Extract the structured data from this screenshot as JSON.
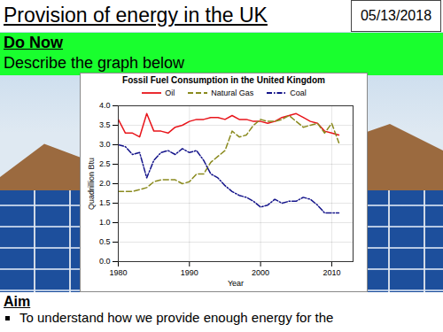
{
  "slide": {
    "title": "Provision of energy in the UK",
    "date": "05/13/2018",
    "heading": "Do Now",
    "prompt": "Describe the graph below",
    "aim_heading": "Aim",
    "aim_items": [
      "To understand how we provide enough energy for the"
    ]
  },
  "chart_data": {
    "type": "line",
    "title": "Fossil Fuel Consumption in the United Kingdom",
    "x_label": "Year",
    "y_label": "Quadrillion Btu",
    "x": [
      1980,
      1981,
      1982,
      1983,
      1984,
      1985,
      1986,
      1987,
      1988,
      1989,
      1990,
      1991,
      1992,
      1993,
      1994,
      1995,
      1996,
      1997,
      1998,
      1999,
      2000,
      2001,
      2002,
      2003,
      2004,
      2005,
      2006,
      2007,
      2008,
      2009,
      2010,
      2011
    ],
    "series": [
      {
        "name": "Oil",
        "color": "#e8151b",
        "line_style": "solid",
        "values": [
          3.65,
          3.3,
          3.3,
          3.2,
          3.8,
          3.35,
          3.35,
          3.3,
          3.45,
          3.5,
          3.6,
          3.65,
          3.65,
          3.7,
          3.7,
          3.65,
          3.75,
          3.65,
          3.65,
          3.6,
          3.6,
          3.55,
          3.6,
          3.7,
          3.75,
          3.8,
          3.7,
          3.6,
          3.55,
          3.35,
          3.3,
          3.25
        ]
      },
      {
        "name": "Natural Gas",
        "color": "#8a8a1e",
        "line_style": "dashed",
        "values": [
          1.8,
          1.8,
          1.8,
          1.85,
          1.9,
          2.05,
          2.1,
          2.1,
          2.1,
          2.0,
          2.05,
          2.25,
          2.25,
          2.55,
          2.7,
          2.85,
          3.35,
          3.2,
          3.25,
          3.5,
          3.65,
          3.6,
          3.6,
          3.65,
          3.75,
          3.6,
          3.45,
          3.5,
          3.55,
          3.3,
          3.55,
          3.05
        ]
      },
      {
        "name": "Coal",
        "color": "#14148a",
        "line_style": "dashdot",
        "values": [
          3.0,
          2.95,
          2.75,
          2.8,
          2.15,
          2.6,
          2.8,
          2.85,
          2.75,
          2.9,
          2.8,
          2.85,
          2.6,
          2.25,
          2.15,
          1.95,
          1.8,
          1.7,
          1.65,
          1.55,
          1.4,
          1.45,
          1.6,
          1.5,
          1.55,
          1.55,
          1.65,
          1.6,
          1.45,
          1.25,
          1.25,
          1.25
        ]
      }
    ],
    "xlim": [
      1980,
      2013
    ],
    "xticks": [
      1980,
      1990,
      2000,
      2010
    ],
    "ylim": [
      0,
      4
    ],
    "yticks": [
      {
        "value": 0,
        "label": "0.0"
      },
      {
        "value": 0.5,
        "label": "0.5"
      },
      {
        "value": 1,
        "label": "1.0"
      },
      {
        "value": 1.5,
        "label": "1.5"
      },
      {
        "value": 2,
        "label": "2.0"
      },
      {
        "value": 2.5,
        "label": "2.5"
      },
      {
        "value": 3,
        "label": "3.0"
      },
      {
        "value": 3.5,
        "label": "3.5"
      },
      {
        "value": 4,
        "label": "4.0"
      }
    ],
    "grid": true,
    "legend": "top"
  }
}
